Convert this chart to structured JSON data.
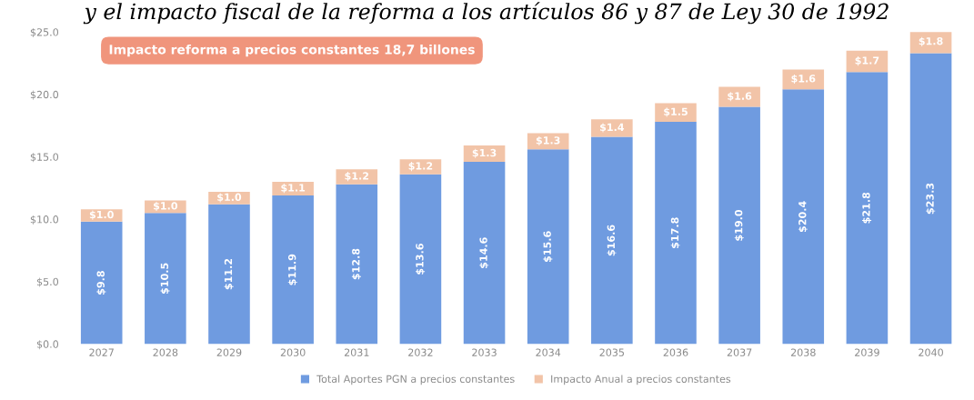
{
  "chart_data": {
    "type": "bar",
    "stacked": true,
    "title": "y el impacto fiscal de la reforma a los artículos 86 y 87 de Ley 30 de 1992",
    "categories": [
      "2027",
      "2028",
      "2029",
      "2030",
      "2031",
      "2032",
      "2033",
      "2034",
      "2035",
      "2036",
      "2037",
      "2038",
      "2039",
      "2040"
    ],
    "series": [
      {
        "name": "Total Aportes PGN a precios constantes",
        "color": "#6f9be0",
        "values": [
          9.8,
          10.5,
          11.2,
          11.9,
          12.8,
          13.6,
          14.6,
          15.6,
          16.6,
          17.8,
          19.0,
          20.4,
          21.8,
          23.3
        ],
        "value_labels": [
          "$9.8",
          "$10.5",
          "$11.2",
          "$11.9",
          "$12.8",
          "$13.6",
          "$14.6",
          "$15.6",
          "$16.6",
          "$17.8",
          "$19.0",
          "$20.4",
          "$21.8",
          "$23.3"
        ]
      },
      {
        "name": "Impacto Anual a precios constantes",
        "color": "#f2c4a8",
        "values": [
          1.0,
          1.0,
          1.0,
          1.1,
          1.2,
          1.2,
          1.3,
          1.3,
          1.4,
          1.5,
          1.6,
          1.6,
          1.7,
          1.8
        ],
        "value_labels": [
          "$1.0",
          "$1.0",
          "$1.0",
          "$1.1",
          "$1.2",
          "$1.2",
          "$1.3",
          "$1.3",
          "$1.4",
          "$1.5",
          "$1.6",
          "$1.6",
          "$1.7",
          "$1.8"
        ]
      }
    ],
    "ylim": [
      0,
      25
    ],
    "yticks": [
      {
        "value": 0,
        "label": "$0.0"
      },
      {
        "value": 5,
        "label": "$5.0"
      },
      {
        "value": 10,
        "label": "$10.0"
      },
      {
        "value": 15,
        "label": "$15.0"
      },
      {
        "value": 20,
        "label": "$20.0"
      },
      {
        "value": 25,
        "label": "$25.0"
      }
    ],
    "grid": false,
    "legend": "bottom",
    "annotations": [
      "Impacto reforma a precios constantes 18,7 billones"
    ]
  }
}
